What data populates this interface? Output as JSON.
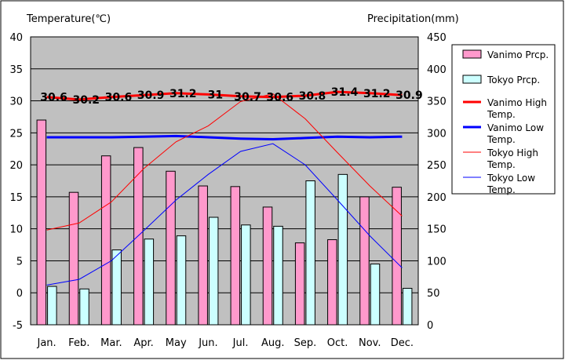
{
  "chart_data": {
    "type": "bar",
    "left_axis_title": "Temperature(℃)",
    "right_axis_title": "Precipitation(mm)",
    "categories": [
      "Jan.",
      "Feb.",
      "Mar.",
      "Apr.",
      "May",
      "Jun.",
      "Jul.",
      "Aug.",
      "Sep.",
      "Oct.",
      "Nov.",
      "Dec."
    ],
    "left_ylim": [
      -5,
      40
    ],
    "left_ticks": [
      -5,
      0,
      5,
      10,
      15,
      20,
      25,
      30,
      35,
      40
    ],
    "right_ylim": [
      0,
      450
    ],
    "right_ticks": [
      0,
      50,
      100,
      150,
      200,
      250,
      300,
      350,
      400,
      450
    ],
    "grid": "horizontal",
    "legend_position": "right",
    "bar_series": [
      {
        "name": "Vanimo Prcp.",
        "axis": "right",
        "color": "#ff99cc",
        "values": [
          320,
          207,
          264,
          277,
          240,
          217,
          216,
          184,
          128,
          133,
          200,
          215
        ]
      },
      {
        "name": "Tokyo Prcp.",
        "axis": "right",
        "color": "#ccffff",
        "values": [
          60,
          56,
          117,
          134,
          139,
          168,
          156,
          154,
          225,
          235,
          95,
          57
        ]
      }
    ],
    "line_series": [
      {
        "name": "Vanimo High Temp.",
        "axis": "left",
        "color": "#ff0000",
        "width": 3,
        "values": [
          30.6,
          30.2,
          30.6,
          30.9,
          31.2,
          31.0,
          30.7,
          30.6,
          30.8,
          31.4,
          31.2,
          30.9
        ],
        "labels": [
          "30.6",
          "30.2",
          "30.6",
          "30.9",
          "31.2",
          "31",
          "30.7",
          "30.6",
          "30.8",
          "31.4",
          "31.2",
          "30.9"
        ]
      },
      {
        "name": "Vanimo Low Temp.",
        "axis": "left",
        "color": "#0000ff",
        "width": 3,
        "values": [
          24.3,
          24.3,
          24.3,
          24.4,
          24.5,
          24.3,
          24.1,
          24.0,
          24.2,
          24.4,
          24.3,
          24.4
        ]
      },
      {
        "name": "Tokyo High Temp.",
        "axis": "left",
        "color": "#ff0000",
        "width": 1,
        "values": [
          9.8,
          10.9,
          14.2,
          19.4,
          23.6,
          26.1,
          29.9,
          31.1,
          27.2,
          21.9,
          16.7,
          12.0
        ]
      },
      {
        "name": "Tokyo Low Temp.",
        "axis": "left",
        "color": "#0000ff",
        "width": 1,
        "values": [
          1.2,
          2.1,
          5.0,
          9.7,
          14.5,
          18.5,
          22.1,
          23.3,
          20.0,
          14.5,
          8.9,
          3.9
        ]
      }
    ]
  }
}
